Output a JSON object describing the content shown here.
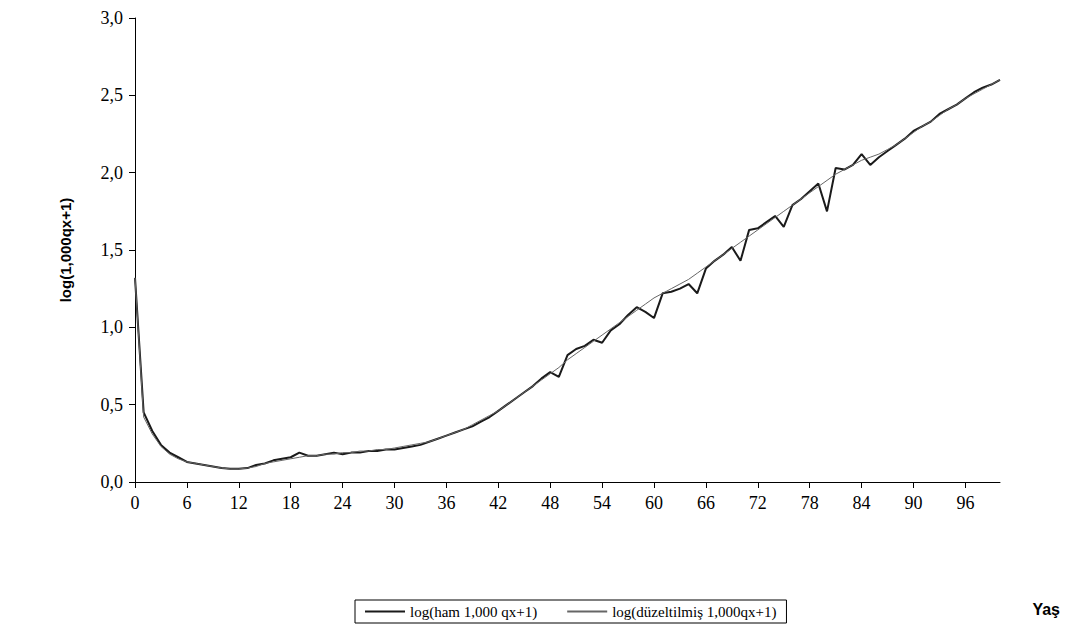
{
  "chart_data": {
    "type": "line",
    "y_label": "log(1,000qx+1)",
    "x_label": "Yaş",
    "x": [
      0,
      1,
      2,
      3,
      4,
      5,
      6,
      7,
      8,
      9,
      10,
      11,
      12,
      13,
      14,
      15,
      16,
      17,
      18,
      19,
      20,
      21,
      22,
      23,
      24,
      25,
      26,
      27,
      28,
      29,
      30,
      31,
      32,
      33,
      34,
      35,
      36,
      37,
      38,
      39,
      40,
      41,
      42,
      43,
      44,
      45,
      46,
      47,
      48,
      49,
      50,
      51,
      52,
      53,
      54,
      55,
      56,
      57,
      58,
      59,
      60,
      61,
      62,
      63,
      64,
      65,
      66,
      67,
      68,
      69,
      70,
      71,
      72,
      73,
      74,
      75,
      76,
      77,
      78,
      79,
      80,
      81,
      82,
      83,
      84,
      85,
      86,
      87,
      88,
      89,
      90,
      91,
      92,
      93,
      94,
      95,
      96,
      97,
      98,
      99,
      100
    ],
    "series": [
      {
        "name": "log(ham 1,000 qx+1)",
        "color": "#1a1a1a",
        "line_style": "solid",
        "values": [
          1.32,
          0.45,
          0.33,
          0.24,
          0.19,
          0.16,
          0.13,
          0.12,
          0.11,
          0.1,
          0.09,
          0.085,
          0.085,
          0.09,
          0.11,
          0.12,
          0.14,
          0.15,
          0.16,
          0.19,
          0.17,
          0.17,
          0.18,
          0.19,
          0.18,
          0.19,
          0.19,
          0.2,
          0.2,
          0.21,
          0.21,
          0.22,
          0.23,
          0.24,
          0.26,
          0.28,
          0.3,
          0.32,
          0.34,
          0.36,
          0.39,
          0.42,
          0.46,
          0.5,
          0.54,
          0.58,
          0.62,
          0.67,
          0.71,
          0.68,
          0.82,
          0.86,
          0.88,
          0.92,
          0.9,
          0.98,
          1.02,
          1.08,
          1.13,
          1.1,
          1.06,
          1.22,
          1.23,
          1.25,
          1.28,
          1.22,
          1.38,
          1.43,
          1.47,
          1.52,
          1.43,
          1.63,
          1.64,
          1.68,
          1.72,
          1.65,
          1.79,
          1.83,
          1.88,
          1.93,
          1.75,
          2.03,
          2.02,
          2.05,
          2.12,
          2.05,
          2.1,
          2.14,
          2.18,
          2.22,
          2.27,
          2.3,
          2.33,
          2.38,
          2.41,
          2.44,
          2.48,
          2.52,
          2.55,
          2.57,
          2.6
        ]
      },
      {
        "name": "log(düzeltilmiş 1,000qx+1)",
        "color": "#666666",
        "line_style": "solid",
        "values": [
          1.32,
          0.42,
          0.31,
          0.23,
          0.18,
          0.15,
          0.13,
          0.12,
          0.11,
          0.1,
          0.09,
          0.085,
          0.085,
          0.09,
          0.1,
          0.12,
          0.13,
          0.14,
          0.15,
          0.16,
          0.17,
          0.17,
          0.18,
          0.18,
          0.19,
          0.19,
          0.2,
          0.2,
          0.21,
          0.21,
          0.22,
          0.23,
          0.24,
          0.25,
          0.26,
          0.28,
          0.3,
          0.32,
          0.34,
          0.37,
          0.4,
          0.43,
          0.46,
          0.5,
          0.54,
          0.58,
          0.62,
          0.66,
          0.7,
          0.74,
          0.79,
          0.83,
          0.87,
          0.91,
          0.95,
          0.99,
          1.03,
          1.07,
          1.11,
          1.15,
          1.19,
          1.22,
          1.25,
          1.28,
          1.31,
          1.35,
          1.39,
          1.43,
          1.47,
          1.51,
          1.55,
          1.59,
          1.63,
          1.67,
          1.71,
          1.75,
          1.79,
          1.83,
          1.87,
          1.91,
          1.95,
          1.99,
          2.02,
          2.05,
          2.08,
          2.1,
          2.12,
          2.15,
          2.18,
          2.22,
          2.26,
          2.3,
          2.33,
          2.37,
          2.41,
          2.44,
          2.48,
          2.51,
          2.54,
          2.57,
          2.6
        ]
      }
    ],
    "xlim": [
      0,
      100
    ],
    "xticks": [
      0,
      6,
      12,
      18,
      24,
      30,
      36,
      42,
      48,
      54,
      60,
      66,
      72,
      78,
      84,
      90,
      96
    ],
    "ylim": [
      0,
      3
    ],
    "yticks": [
      {
        "value": 0,
        "label": "0,0"
      },
      {
        "value": 0.5,
        "label": "0,5"
      },
      {
        "value": 1,
        "label": "1,0"
      },
      {
        "value": 1.5,
        "label": "1,5"
      },
      {
        "value": 2,
        "label": "2,0"
      },
      {
        "value": 2.5,
        "label": "2,5"
      },
      {
        "value": 3,
        "label": "3,0"
      }
    ],
    "grid": false,
    "legend": "bottom"
  }
}
